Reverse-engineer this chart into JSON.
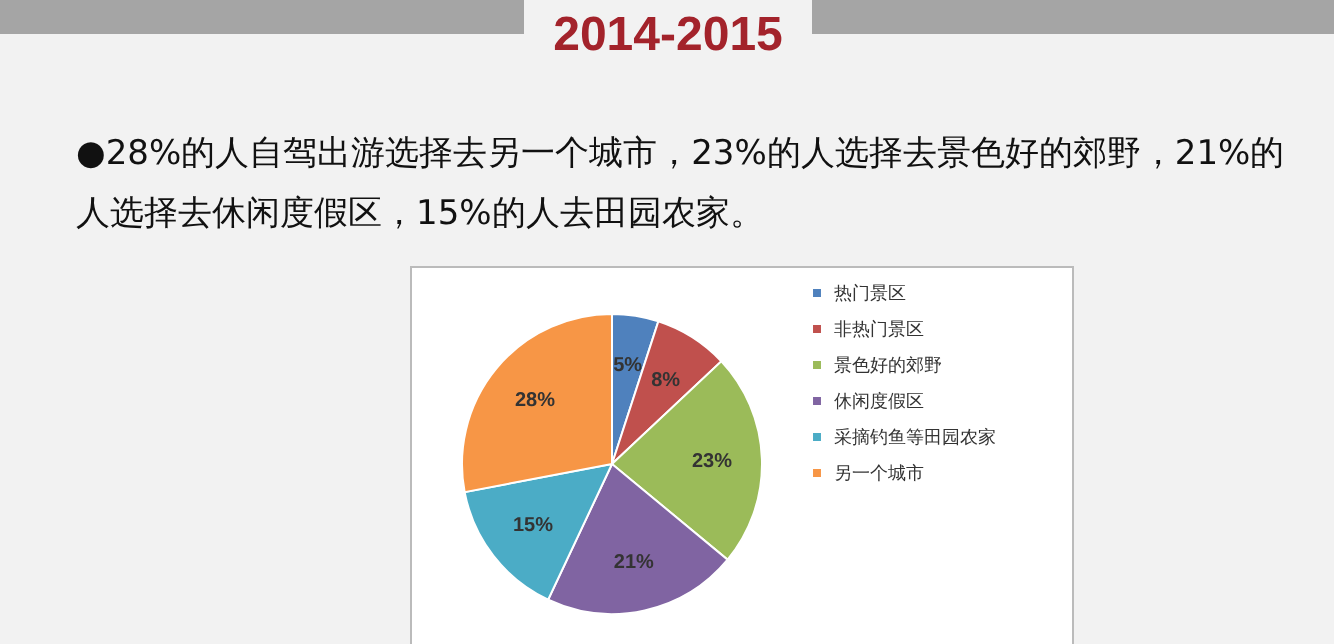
{
  "chart_data": {
    "type": "pie",
    "title": "2014-2015",
    "subtitle": "●28%的人自驾出游选择去另一个城市，23%的人选择去景色好的郊野，21%的人选择去休闲度假区，15%的人去田园农家。",
    "categories": [
      "热门景区",
      "非热门景区",
      "景色好的郊野",
      "休闲度假区",
      "采摘钓鱼等田园农家",
      "另一个城市"
    ],
    "values": [
      5,
      8,
      23,
      21,
      15,
      28
    ],
    "colors": [
      "#4f81bd",
      "#c0504d",
      "#9bbb59",
      "#8064a2",
      "#4bacc6",
      "#f79646"
    ],
    "value_labels": [
      "5%",
      "8%",
      "23%",
      "21%",
      "15%",
      "28%"
    ],
    "legend": "right"
  }
}
